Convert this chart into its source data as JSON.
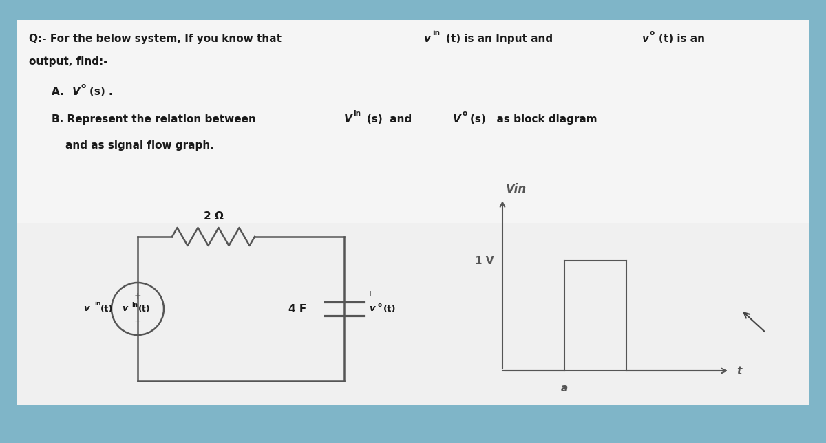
{
  "bg_outer": "#7fb5c8",
  "bg_card": "#e8e8e8",
  "bg_bottom": "#c8d8e0",
  "text_color": "#1a1a1a",
  "circuit_color": "#555555",
  "graph_color": "#555555",
  "title_line1": "Q:- For the below system, If you know that ",
  "title_vin": "v",
  "title_mid": "(t) is an Input and ",
  "title_vo": "v",
  "title_end": "(t) is an",
  "title_line2": "output, find:-",
  "item_a_pre": "A. ",
  "item_a_V": "V",
  "item_a_end": "(s) .",
  "item_b_pre": "B. Represent the relation between ",
  "item_b_Vin": "V",
  "item_b_mid": "(s)  and ",
  "item_b_Vo": "V",
  "item_b_end": "(s)   as block diagram",
  "item_b2": "    and as signal flow graph.",
  "resistor_label": "2 Ω",
  "capacitor_label": "4 F",
  "source_label_v": "v",
  "output_label_v": "v",
  "graph_vin": "Vin",
  "graph_1v": "1 V",
  "graph_a": "a",
  "graph_t": "t",
  "lw_circuit": 1.8,
  "lw_graph": 1.5
}
